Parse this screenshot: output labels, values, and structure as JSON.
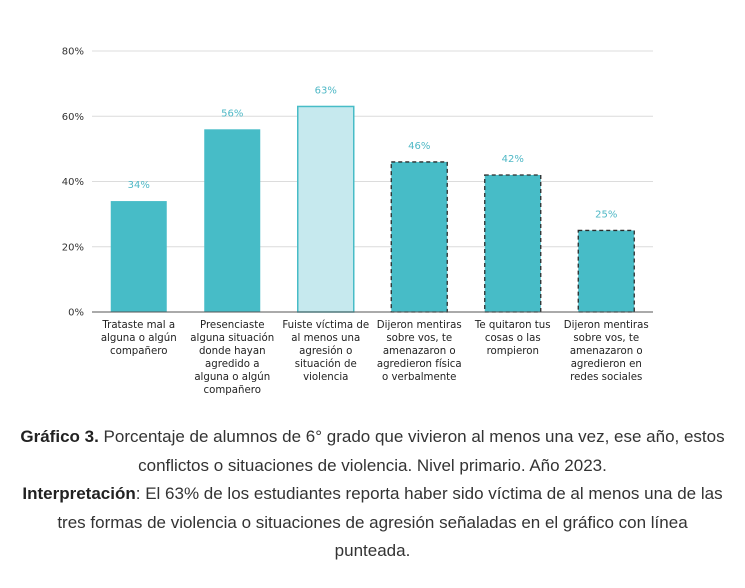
{
  "chart_data": {
    "type": "bar",
    "ylim": [
      0,
      80
    ],
    "yticks": [
      0,
      20,
      40,
      60,
      80
    ],
    "tick_suffix": "%",
    "grid": true,
    "categories": [
      [
        "Trataste mal a",
        "alguna o algún",
        "compañero"
      ],
      [
        "Presenciaste",
        "alguna situación",
        "donde hayan",
        "agredido a",
        "alguna o algún",
        "compañero"
      ],
      [
        "Fuiste víctima de",
        "al menos una",
        "agresión o",
        "situación de",
        "violencia"
      ],
      [
        "Dijeron mentiras",
        "sobre vos, te",
        "amenazaron o",
        "agredieron física",
        "o verbalmente"
      ],
      [
        "Te quitaron tus",
        "cosas o las",
        "rompieron"
      ],
      [
        "Dijeron mentiras",
        "sobre vos, te",
        "amenazaron o",
        "agredieron en",
        "redes sociales"
      ]
    ],
    "values": [
      34,
      56,
      63,
      46,
      42,
      25
    ],
    "data_labels": [
      "34%",
      "56%",
      "63%",
      "46%",
      "42%",
      "25%"
    ],
    "bar_styles": [
      "solid",
      "solid",
      "highlight",
      "dashed",
      "dashed",
      "dashed"
    ],
    "colors": {
      "bar": "#47bcc7",
      "highlight_fill": "#c6e9ee",
      "highlight_stroke": "#47bcc7",
      "dashed_stroke": "#2b2b2b",
      "data_label": "#4fb8c6"
    }
  },
  "caption": {
    "figure_label": "Gráfico 3.",
    "figure_text": " Porcentaje de alumnos de 6° grado que vivieron al menos una vez, ese año, estos conflictos o situaciones de violencia. Nivel primario. Año 2023.",
    "interp_label": "Interpretación",
    "interp_text": ": El 63% de los estudiantes reporta haber sido víctima de al menos una de las tres formas de violencia o situaciones de agresión señaladas en el gráfico con línea punteada."
  }
}
